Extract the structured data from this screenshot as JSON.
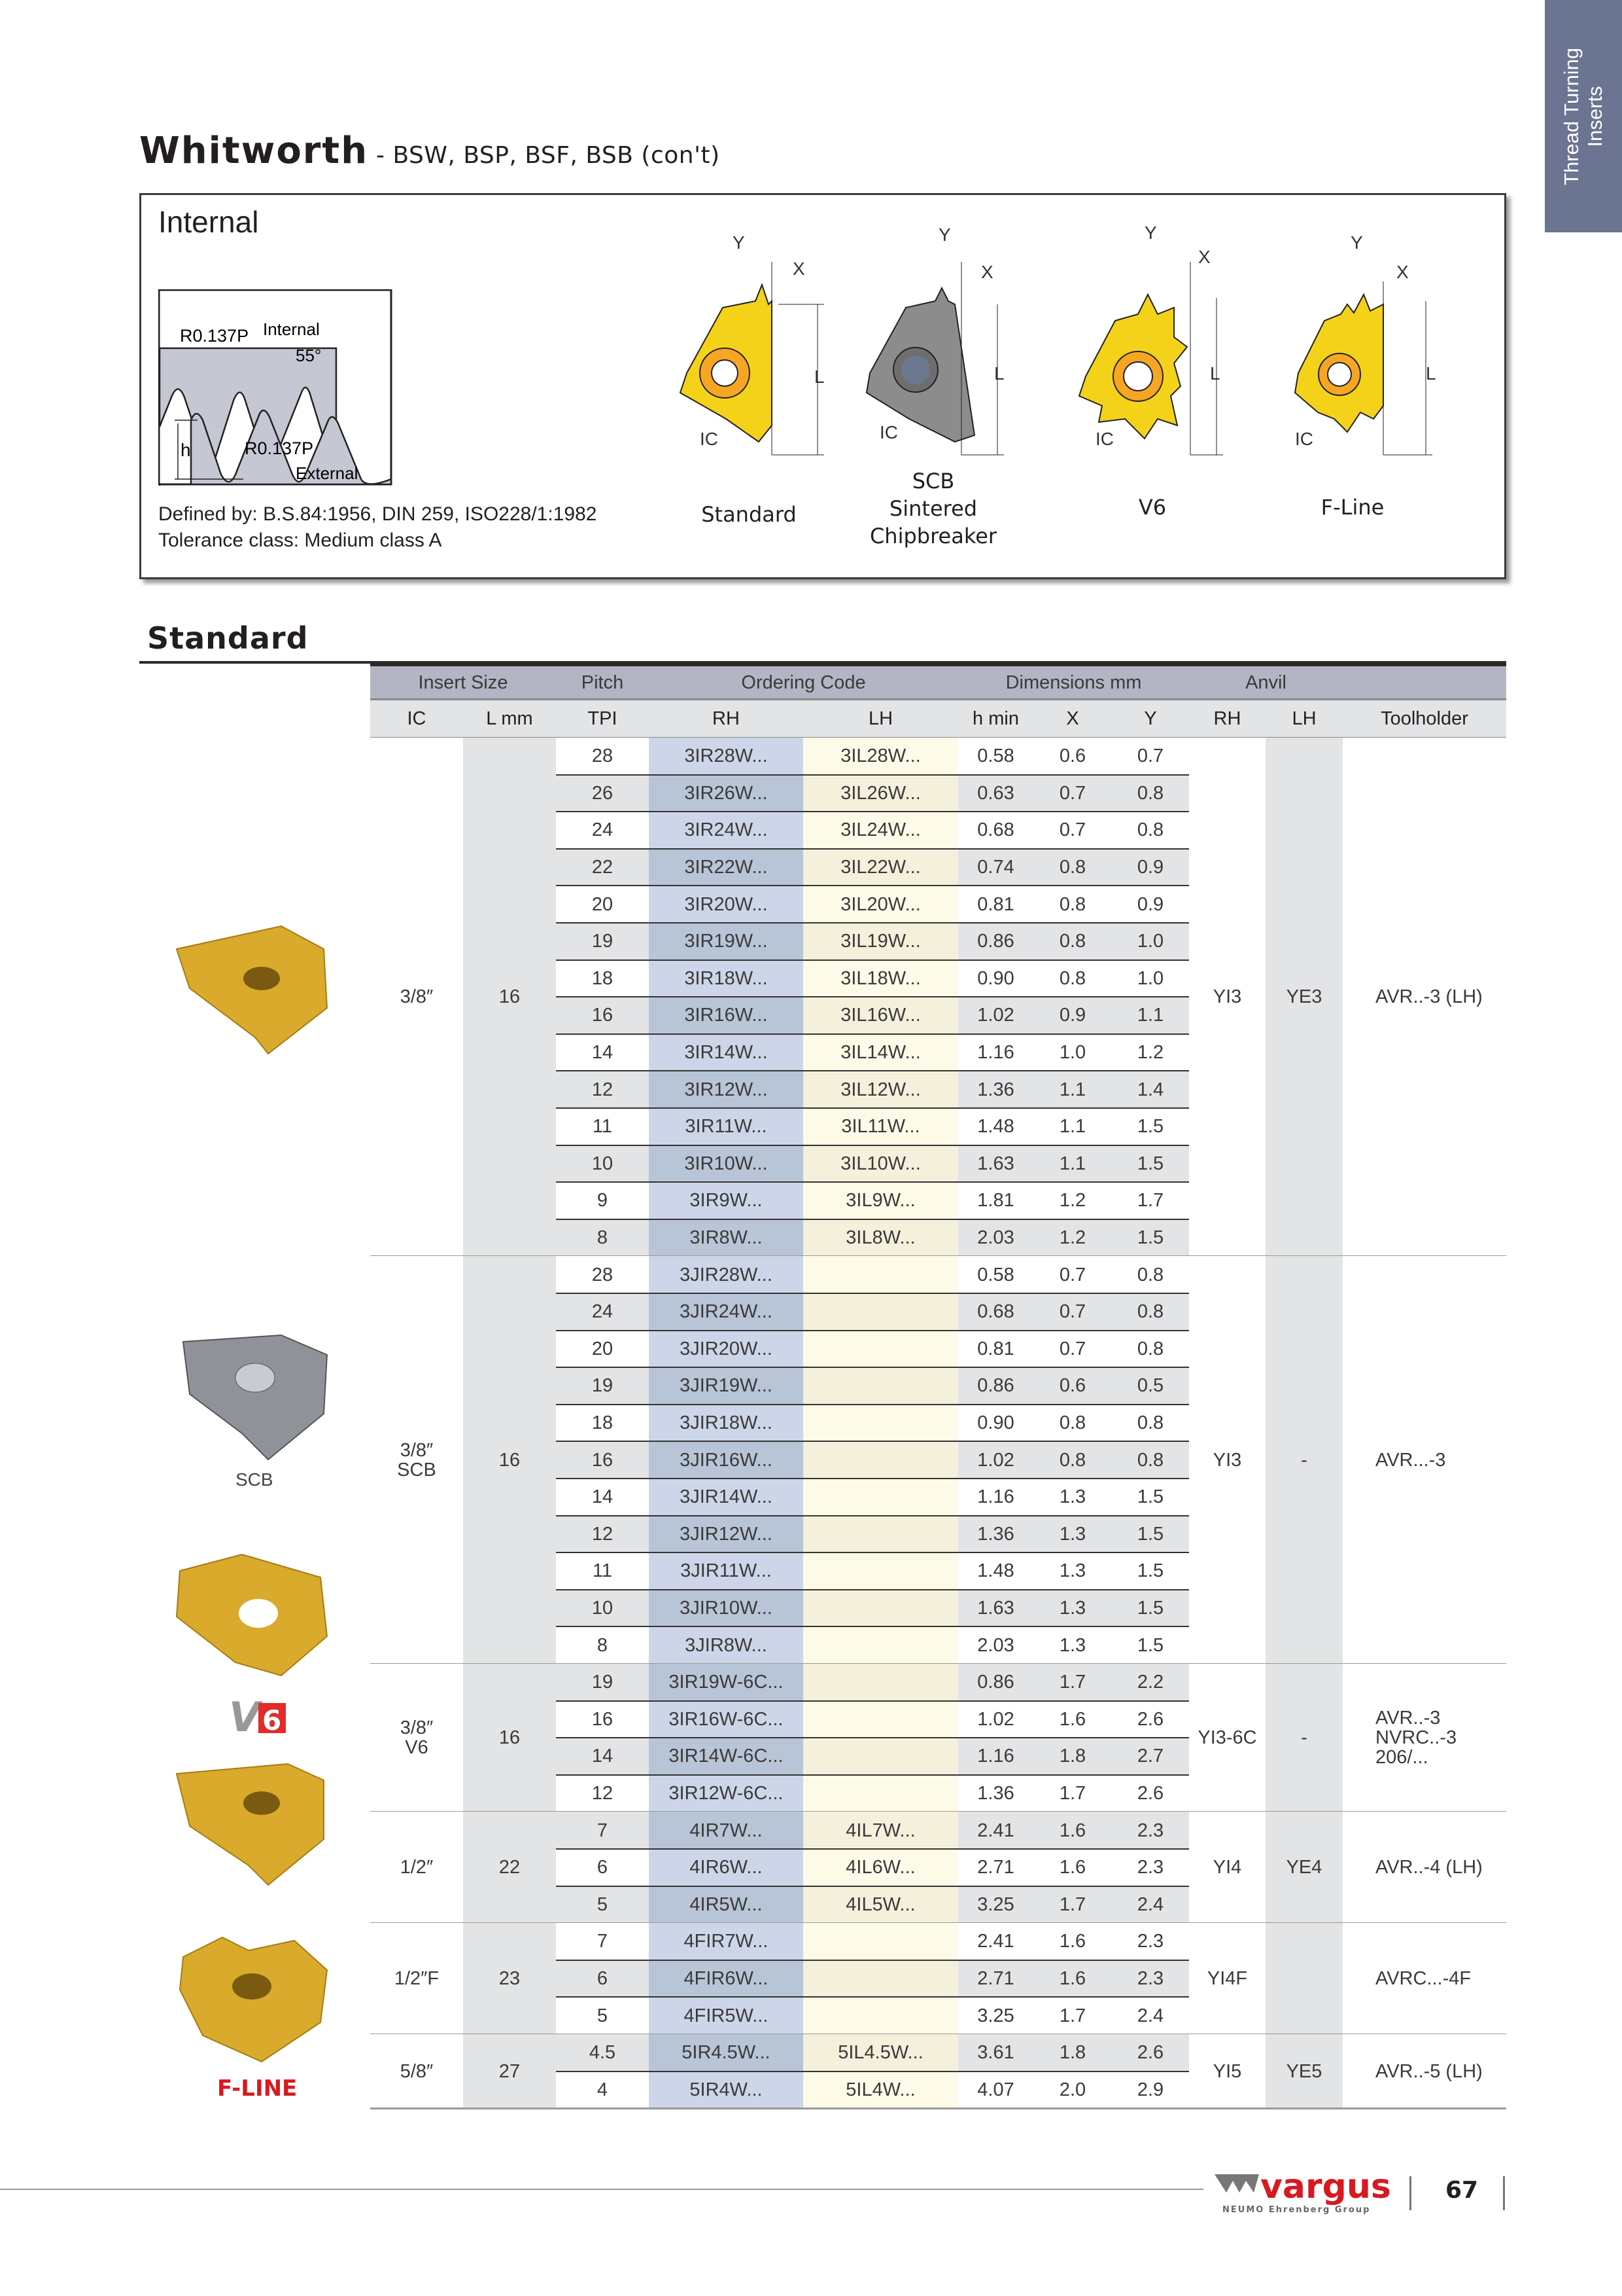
{
  "side_tab": {
    "line1": "Thread Turning",
    "line2": "Inserts",
    "color": "#6b7490"
  },
  "header": {
    "title": "Whitworth",
    "subtitle": " - BSW, BSP, BSF, BSB (con't)"
  },
  "spec": {
    "heading": "Internal",
    "thread_diagram": {
      "radius_top": "R0.137P",
      "internal": "Internal",
      "angle": "55°",
      "h": "h",
      "radius_bottom": "R0.137P",
      "external": "External"
    },
    "defined_by": "Defined by: B.S.84:1956, DIN 259, ISO228/1:1982",
    "tolerance": "Tolerance class: Medium class A",
    "dim_labels": {
      "y": "Y",
      "x": "X",
      "l": "L",
      "ic": "IC"
    },
    "inserts": [
      {
        "label": "Standard",
        "color": "#f5d21a"
      },
      {
        "label_lines": [
          "SCB",
          "Sintered",
          "Chipbreaker"
        ],
        "color": "#8c8c8c"
      },
      {
        "label": "V6",
        "color": "#f5d21a"
      },
      {
        "label": "F-Line",
        "color": "#f5d21a"
      }
    ]
  },
  "section_title": "Standard",
  "table": {
    "header_groups": [
      "Insert Size",
      "Pitch",
      "Ordering Code",
      "Dimensions mm",
      "Anvil",
      ""
    ],
    "columns": [
      "IC",
      "L mm",
      "TPI",
      "RH",
      "LH",
      "h min",
      "X",
      "Y",
      "RH",
      "LH",
      "Toolholder"
    ],
    "colors": {
      "header_top": "#b3b5c4",
      "header_sub": "#e3e4e6",
      "rh_light": "#cdd6e8",
      "rh_dark": "#b8c5d7",
      "lh_light": "#fdfbe8",
      "lh_dark": "#f5f0dc",
      "gray": "#e3e4e6"
    },
    "groups": [
      {
        "ic": "3/8″",
        "l": "16",
        "anvil_rh": "YI3",
        "anvil_lh": "YE3",
        "toolholder": "AVR..-3 (LH)",
        "rows": [
          [
            "28",
            "3IR28W...",
            "3IL28W...",
            "0.58",
            "0.6",
            "0.7"
          ],
          [
            "26",
            "3IR26W...",
            "3IL26W...",
            "0.63",
            "0.7",
            "0.8"
          ],
          [
            "24",
            "3IR24W...",
            "3IL24W...",
            "0.68",
            "0.7",
            "0.8"
          ],
          [
            "22",
            "3IR22W...",
            "3IL22W...",
            "0.74",
            "0.8",
            "0.9"
          ],
          [
            "20",
            "3IR20W...",
            "3IL20W...",
            "0.81",
            "0.8",
            "0.9"
          ],
          [
            "19",
            "3IR19W...",
            "3IL19W...",
            "0.86",
            "0.8",
            "1.0"
          ],
          [
            "18",
            "3IR18W...",
            "3IL18W...",
            "0.90",
            "0.8",
            "1.0"
          ],
          [
            "16",
            "3IR16W...",
            "3IL16W...",
            "1.02",
            "0.9",
            "1.1"
          ],
          [
            "14",
            "3IR14W...",
            "3IL14W...",
            "1.16",
            "1.0",
            "1.2"
          ],
          [
            "12",
            "3IR12W...",
            "3IL12W...",
            "1.36",
            "1.1",
            "1.4"
          ],
          [
            "11",
            "3IR11W...",
            "3IL11W...",
            "1.48",
            "1.1",
            "1.5"
          ],
          [
            "10",
            "3IR10W...",
            "3IL10W...",
            "1.63",
            "1.1",
            "1.5"
          ],
          [
            "9",
            "3IR9W...",
            "3IL9W...",
            "1.81",
            "1.2",
            "1.7"
          ],
          [
            "8",
            "3IR8W...",
            "3IL8W...",
            "2.03",
            "1.2",
            "1.5"
          ]
        ]
      },
      {
        "ic": "3/8″\nSCB",
        "l": "16",
        "anvil_rh": "YI3",
        "anvil_lh": "-",
        "toolholder": "AVR...-3",
        "rows": [
          [
            "28",
            "3JIR28W...",
            "",
            "0.58",
            "0.7",
            "0.8"
          ],
          [
            "24",
            "3JIR24W...",
            "",
            "0.68",
            "0.7",
            "0.8"
          ],
          [
            "20",
            "3JIR20W...",
            "",
            "0.81",
            "0.7",
            "0.8"
          ],
          [
            "19",
            "3JIR19W...",
            "",
            "0.86",
            "0.6",
            "0.5"
          ],
          [
            "18",
            "3JIR18W...",
            "",
            "0.90",
            "0.8",
            "0.8"
          ],
          [
            "16",
            "3JIR16W...",
            "",
            "1.02",
            "0.8",
            "0.8"
          ],
          [
            "14",
            "3JIR14W...",
            "",
            "1.16",
            "1.3",
            "1.5"
          ],
          [
            "12",
            "3JIR12W...",
            "",
            "1.36",
            "1.3",
            "1.5"
          ],
          [
            "11",
            "3JIR11W...",
            "",
            "1.48",
            "1.3",
            "1.5"
          ],
          [
            "10",
            "3JIR10W...",
            "",
            "1.63",
            "1.3",
            "1.5"
          ],
          [
            "8",
            "3JIR8W...",
            "",
            "2.03",
            "1.3",
            "1.5"
          ]
        ]
      },
      {
        "ic": "3/8″\nV6",
        "l": "16",
        "anvil_rh": "YI3-6C",
        "anvil_lh": "-",
        "toolholder": "AVR..-3\nNVRC..-3 206/...",
        "rows": [
          [
            "19",
            "3IR19W-6C...",
            "",
            "0.86",
            "1.7",
            "2.2"
          ],
          [
            "16",
            "3IR16W-6C...",
            "",
            "1.02",
            "1.6",
            "2.6"
          ],
          [
            "14",
            "3IR14W-6C...",
            "",
            "1.16",
            "1.8",
            "2.7"
          ],
          [
            "12",
            "3IR12W-6C...",
            "",
            "1.36",
            "1.7",
            "2.6"
          ]
        ]
      },
      {
        "ic": "1/2″",
        "l": "22",
        "anvil_rh": "YI4",
        "anvil_lh": "YE4",
        "toolholder": "AVR..-4 (LH)",
        "rows": [
          [
            "7",
            "4IR7W...",
            "4IL7W...",
            "2.41",
            "1.6",
            "2.3"
          ],
          [
            "6",
            "4IR6W...",
            "4IL6W...",
            "2.71",
            "1.6",
            "2.3"
          ],
          [
            "5",
            "4IR5W...",
            "4IL5W...",
            "3.25",
            "1.7",
            "2.4"
          ]
        ]
      },
      {
        "ic": "1/2″F",
        "l": "23",
        "anvil_rh": "YI4F",
        "anvil_lh": "",
        "toolholder": "AVRC...-4F",
        "rows": [
          [
            "7",
            "4FIR7W...",
            "",
            "2.41",
            "1.6",
            "2.3"
          ],
          [
            "6",
            "4FIR6W...",
            "",
            "2.71",
            "1.6",
            "2.3"
          ],
          [
            "5",
            "4FIR5W...",
            "",
            "3.25",
            "1.7",
            "2.4"
          ]
        ]
      },
      {
        "ic": "5/8″",
        "l": "27",
        "anvil_rh": "YI5",
        "anvil_lh": "YE5",
        "toolholder": "AVR..-5 (LH)",
        "rows": [
          [
            "4.5",
            "5IR4.5W...",
            "5IL4.5W...",
            "3.61",
            "1.8",
            "2.6"
          ],
          [
            "4",
            "5IR4W...",
            "5IL4W...",
            "4.07",
            "2.0",
            "2.9"
          ]
        ]
      }
    ]
  },
  "side_images": {
    "scb_label": "SCB",
    "v6_logo": "V6",
    "fline_logo": "F-LINE"
  },
  "footer": {
    "brand": "vargus",
    "brand_sub": "NEUMO Ehrenberg Group",
    "page": "67",
    "brand_color": "#d71920"
  }
}
